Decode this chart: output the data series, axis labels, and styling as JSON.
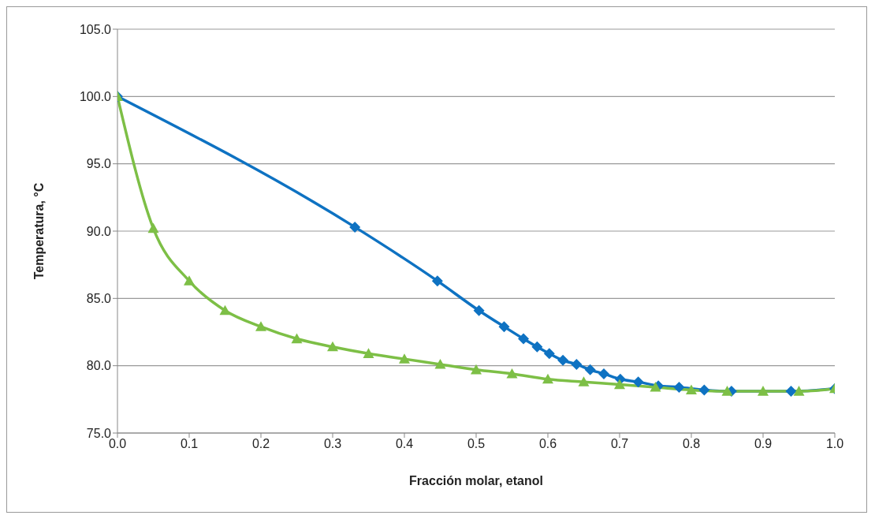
{
  "chart_data": {
    "type": "line",
    "xlabel": "Fracción molar, etanol",
    "ylabel": "Temperatura, °C",
    "xlim": [
      0,
      1
    ],
    "ylim": [
      75,
      105
    ],
    "xticks": [
      {
        "value": 0,
        "label": "0.0"
      },
      {
        "value": 0.1,
        "label": "0.1"
      },
      {
        "value": 0.2,
        "label": "0.2"
      },
      {
        "value": 0.3,
        "label": "0.3"
      },
      {
        "value": 0.4,
        "label": "0.4"
      },
      {
        "value": 0.5,
        "label": "0.5"
      },
      {
        "value": 0.6,
        "label": "0.6"
      },
      {
        "value": 0.7,
        "label": "0.7"
      },
      {
        "value": 0.8,
        "label": "0.8"
      },
      {
        "value": 0.9,
        "label": "0.9"
      },
      {
        "value": 1,
        "label": "1.0"
      }
    ],
    "yticks": [
      {
        "value": 75,
        "label": "75.0"
      },
      {
        "value": 80,
        "label": "80.0"
      },
      {
        "value": 85,
        "label": "85.0"
      },
      {
        "value": 90,
        "label": "90.0"
      },
      {
        "value": 95,
        "label": "95.0"
      },
      {
        "value": 100,
        "label": "100.0"
      },
      {
        "value": 105,
        "label": "105.0"
      }
    ],
    "grid": "y",
    "line_style": "solid",
    "series": [
      {
        "color": "#0e72c2",
        "marker": "diamond",
        "x": [
          0,
          0.331,
          0.446,
          0.504,
          0.539,
          0.566,
          0.585,
          0.602,
          0.621,
          0.64,
          0.659,
          0.678,
          0.701,
          0.726,
          0.754,
          0.783,
          0.818,
          0.856,
          0.939,
          1
        ],
        "values": [
          100,
          90.3,
          86.3,
          84.1,
          82.9,
          82.0,
          81.4,
          80.9,
          80.4,
          80.1,
          79.7,
          79.4,
          79.0,
          78.8,
          78.5,
          78.4,
          78.2,
          78.1,
          78.1,
          78.3
        ]
      },
      {
        "color": "#7dbf46",
        "marker": "triangle",
        "x": [
          0,
          0.05,
          0.1,
          0.15,
          0.2,
          0.25,
          0.3,
          0.35,
          0.4,
          0.45,
          0.5,
          0.55,
          0.6,
          0.65,
          0.7,
          0.75,
          0.8,
          0.85,
          0.9,
          0.95,
          1
        ],
        "values": [
          100,
          90.2,
          86.3,
          84.1,
          82.9,
          82.0,
          81.4,
          80.9,
          80.5,
          80.1,
          79.7,
          79.4,
          79.0,
          78.8,
          78.6,
          78.4,
          78.2,
          78.1,
          78.1,
          78.1,
          78.3
        ]
      }
    ]
  }
}
